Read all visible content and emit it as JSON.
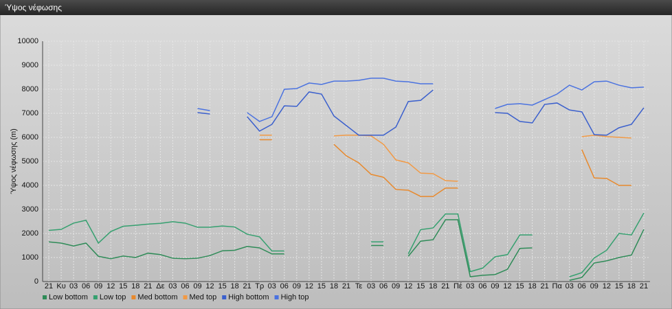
{
  "chart_data": {
    "type": "line",
    "title": "Ύψος νέφωσης",
    "y_label": "Ύψος νέφωσης (m)",
    "categories": [
      "21",
      "Κυ",
      "03",
      "06",
      "09",
      "12",
      "15",
      "18",
      "21",
      "Δε",
      "03",
      "06",
      "09",
      "12",
      "15",
      "18",
      "21",
      "Τρ",
      "03",
      "06",
      "09",
      "12",
      "15",
      "18",
      "21",
      "Τε",
      "03",
      "06",
      "09",
      "12",
      "15",
      "18",
      "21",
      "Πέ",
      "03",
      "06",
      "09",
      "12",
      "15",
      "18",
      "21",
      "Πα",
      "03",
      "06",
      "09",
      "12",
      "15",
      "18",
      "21"
    ],
    "ylim": [
      0,
      10000
    ],
    "yticks": [
      0,
      1000,
      2000,
      3000,
      4000,
      5000,
      6000,
      7000,
      8000,
      9000,
      10000
    ],
    "grid": true,
    "series": [
      {
        "name": "Low bottom",
        "color": "#2e8b57",
        "values": [
          1650,
          1600,
          1480,
          1600,
          1050,
          950,
          1060,
          1000,
          1180,
          1120,
          970,
          950,
          970,
          1080,
          1280,
          1300,
          1460,
          1400,
          1150,
          1150,
          null,
          null,
          null,
          null,
          null,
          null,
          1500,
          1500,
          null,
          1050,
          1680,
          1740,
          2570,
          2570,
          200,
          260,
          290,
          510,
          1380,
          1400,
          null,
          null,
          50,
          170,
          770,
          860,
          1000,
          1100,
          2170
        ]
      },
      {
        "name": "Low top",
        "color": "#35a06f",
        "values": [
          2130,
          2170,
          2430,
          2550,
          1600,
          2080,
          2300,
          2340,
          2390,
          2420,
          2490,
          2430,
          2260,
          2260,
          2310,
          2270,
          1970,
          1860,
          1270,
          1270,
          null,
          null,
          null,
          null,
          null,
          null,
          1650,
          1650,
          null,
          1150,
          2160,
          2230,
          2810,
          2810,
          410,
          560,
          1030,
          1120,
          1940,
          1940,
          null,
          null,
          200,
          370,
          980,
          1300,
          2000,
          1940,
          2850
        ]
      },
      {
        "name": "Med bottom",
        "color": "#e8892c",
        "values": [
          null,
          null,
          null,
          null,
          null,
          null,
          null,
          null,
          null,
          null,
          null,
          null,
          null,
          null,
          null,
          null,
          null,
          5900,
          5900,
          null,
          null,
          null,
          null,
          5710,
          5230,
          4940,
          4460,
          4340,
          3830,
          3800,
          3540,
          3540,
          3890,
          3890,
          null,
          null,
          null,
          null,
          null,
          null,
          null,
          null,
          null,
          5490,
          4310,
          4290,
          4000,
          4000,
          null
        ]
      },
      {
        "name": "Med top",
        "color": "#f29a45",
        "values": [
          null,
          null,
          null,
          null,
          null,
          null,
          null,
          null,
          null,
          null,
          null,
          null,
          null,
          null,
          null,
          null,
          null,
          6090,
          6090,
          null,
          null,
          null,
          null,
          6060,
          6090,
          6090,
          6060,
          5710,
          5060,
          4940,
          4510,
          4490,
          4200,
          4170,
          null,
          null,
          null,
          null,
          null,
          null,
          null,
          null,
          null,
          6030,
          6090,
          6030,
          6000,
          5970,
          null
        ]
      },
      {
        "name": "High bottom",
        "color": "#3a5fcd",
        "values": [
          null,
          null,
          null,
          null,
          null,
          null,
          null,
          null,
          null,
          null,
          null,
          null,
          7030,
          6970,
          null,
          null,
          6860,
          6260,
          6540,
          7310,
          7290,
          7890,
          7800,
          6890,
          6490,
          6090,
          6090,
          6090,
          6430,
          7490,
          7540,
          7970,
          null,
          null,
          null,
          null,
          7030,
          7000,
          6660,
          6600,
          7370,
          7430,
          7140,
          7060,
          6110,
          6090,
          6400,
          6540,
          7230
        ]
      },
      {
        "name": "High top",
        "color": "#4a72e0",
        "values": [
          null,
          null,
          null,
          null,
          null,
          null,
          null,
          null,
          null,
          null,
          null,
          null,
          7200,
          7110,
          null,
          null,
          7030,
          6660,
          6860,
          8000,
          8030,
          8260,
          8200,
          8340,
          8340,
          8370,
          8460,
          8460,
          8340,
          8310,
          8230,
          8230,
          null,
          null,
          null,
          null,
          7200,
          7370,
          7400,
          7340,
          7570,
          7800,
          8170,
          7970,
          8310,
          8340,
          8170,
          8060,
          8090
        ]
      }
    ]
  }
}
